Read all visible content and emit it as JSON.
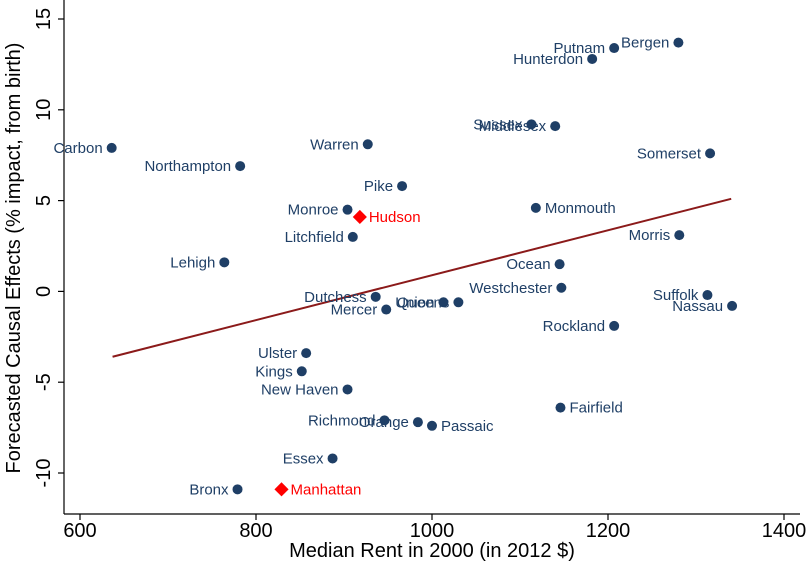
{
  "chart_data": {
    "type": "scatter",
    "title": "",
    "xlabel": "Median Rent in 2000 (in 2012 $)",
    "ylabel": "Forecasted Causal Effects (% impact, from birth)",
    "xlim": [
      600,
      1400
    ],
    "ylim": [
      -12,
      16
    ],
    "xticks": [
      600,
      800,
      1000,
      1200,
      1400
    ],
    "yticks": [
      -10,
      -5,
      0,
      5,
      10,
      15
    ],
    "grid": false,
    "colors": {
      "point": "#1f3f66",
      "label": "#1f3f66",
      "highlight": "#ff0000",
      "fit_line": "#8b1a1a"
    },
    "fit_line": {
      "x": [
        637,
        1340
      ],
      "y": [
        -3.6,
        5.1
      ]
    },
    "points": [
      {
        "name": "Bergen",
        "x": 1280,
        "y": 13.7,
        "label_side": "left"
      },
      {
        "name": "Putnam",
        "x": 1207,
        "y": 13.4,
        "label_side": "left"
      },
      {
        "name": "Hunterdon",
        "x": 1182,
        "y": 12.8,
        "label_side": "left"
      },
      {
        "name": "Sussex",
        "x": 1113,
        "y": 9.2,
        "label_side": "left"
      },
      {
        "name": "Middlesex",
        "x": 1140,
        "y": 9.1,
        "label_side": "left"
      },
      {
        "name": "Carbon",
        "x": 636,
        "y": 7.9,
        "label_side": "left"
      },
      {
        "name": "Warren",
        "x": 927,
        "y": 8.1,
        "label_side": "left"
      },
      {
        "name": "Somerset",
        "x": 1316,
        "y": 7.6,
        "label_side": "left"
      },
      {
        "name": "Northampton",
        "x": 782,
        "y": 6.9,
        "label_side": "left"
      },
      {
        "name": "Pike",
        "x": 966,
        "y": 5.8,
        "label_side": "left"
      },
      {
        "name": "Monroe",
        "x": 904,
        "y": 4.5,
        "label_side": "left"
      },
      {
        "name": "Hudson",
        "x": 918,
        "y": 4.1,
        "label_side": "right",
        "highlight": true
      },
      {
        "name": "Monmouth",
        "x": 1118,
        "y": 4.6,
        "label_side": "right"
      },
      {
        "name": "Litchfield",
        "x": 910,
        "y": 3.0,
        "label_side": "left"
      },
      {
        "name": "Morris",
        "x": 1281,
        "y": 3.1,
        "label_side": "left"
      },
      {
        "name": "Lehigh",
        "x": 764,
        "y": 1.6,
        "label_side": "left"
      },
      {
        "name": "Ocean",
        "x": 1145,
        "y": 1.5,
        "label_side": "left"
      },
      {
        "name": "Westchester",
        "x": 1147,
        "y": 0.2,
        "label_side": "left"
      },
      {
        "name": "Suffolk",
        "x": 1313,
        "y": -0.2,
        "label_side": "left"
      },
      {
        "name": "Nassau",
        "x": 1341,
        "y": -0.8,
        "label_side": "left"
      },
      {
        "name": "Dutchess",
        "x": 936,
        "y": -0.3,
        "label_side": "left"
      },
      {
        "name": "Union",
        "x": 1013,
        "y": -0.6,
        "label_side": "left"
      },
      {
        "name": "Queens",
        "x": 1030,
        "y": -0.6,
        "label_side": "left"
      },
      {
        "name": "Mercer",
        "x": 948,
        "y": -1.0,
        "label_side": "left"
      },
      {
        "name": "Rockland",
        "x": 1207,
        "y": -1.9,
        "label_side": "left"
      },
      {
        "name": "Ulster",
        "x": 857,
        "y": -3.4,
        "label_side": "left"
      },
      {
        "name": "Kings",
        "x": 852,
        "y": -4.4,
        "label_side": "left"
      },
      {
        "name": "New Haven",
        "x": 904,
        "y": -5.4,
        "label_side": "left"
      },
      {
        "name": "Fairfield",
        "x": 1146,
        "y": -6.4,
        "label_side": "right"
      },
      {
        "name": "Richmond",
        "x": 946,
        "y": -7.1,
        "label_side": "left"
      },
      {
        "name": "Orange",
        "x": 984,
        "y": -7.2,
        "label_side": "left"
      },
      {
        "name": "Passaic",
        "x": 1000,
        "y": -7.4,
        "label_side": "right"
      },
      {
        "name": "Essex",
        "x": 887,
        "y": -9.2,
        "label_side": "left"
      },
      {
        "name": "Bronx",
        "x": 779,
        "y": -10.9,
        "label_side": "left"
      },
      {
        "name": "Manhattan",
        "x": 829,
        "y": -10.9,
        "label_side": "right",
        "highlight": true
      }
    ]
  }
}
